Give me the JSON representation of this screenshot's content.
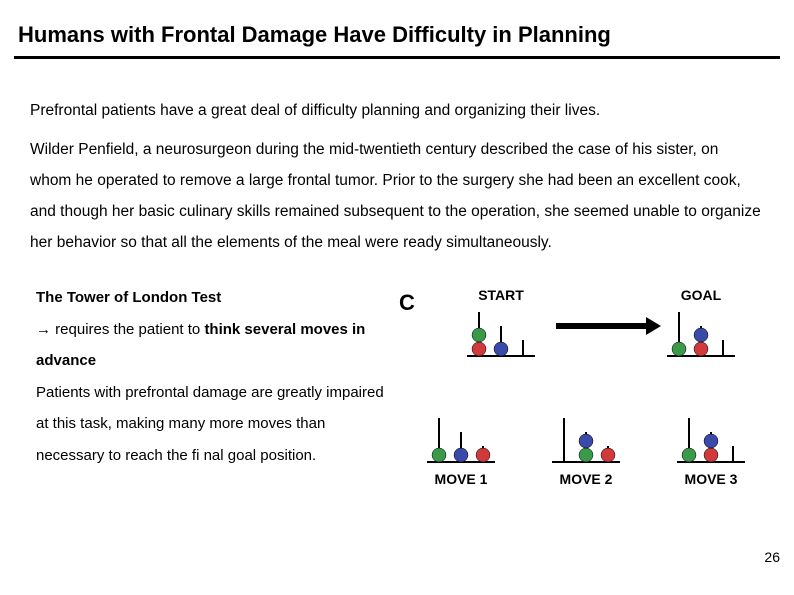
{
  "title": "Humans with Frontal Damage Have Difficulty in Planning",
  "para1": "Prefrontal patients have a great deal of difficulty planning and organizing their lives.",
  "para2": "Wilder Penfield, a neurosurgeon during the mid-twentieth century described the case of his sister, on whom he operated to remove a large frontal tumor. Prior to the surgery she had been an excellent cook, and though her basic culinary skills remained subsequent to the operation, she seemed unable to organize her behavior so that all the elements of the meal were ready simultaneously.",
  "tower": {
    "heading": "The Tower of London Test",
    "line1_prefix": "→ requires the patient to ",
    "line1_bold": "think several moves in advance",
    "line2": "Patients with prefrontal damage are greatly impaired at this task, making many more moves than necessary to reach the fi nal goal position."
  },
  "diagram": {
    "panel_label": "C",
    "labels": {
      "start": "START",
      "goal": "GOAL",
      "move1": "MOVE 1",
      "move2": "MOVE 2",
      "move3": "MOVE 3"
    },
    "colors": {
      "red": "#d03a3a",
      "green": "#3a9a4a",
      "blue": "#3a4aa8",
      "peg": "#000000",
      "arrow": "#000000",
      "bg": "#ffffff"
    },
    "ball_radius": 7,
    "peg_width": 2,
    "peg_heights": [
      44,
      30,
      16
    ],
    "peg_spacing": 22,
    "pegset_width": 70,
    "start": {
      "pegs": [
        [
          "red",
          "green"
        ],
        [
          "blue"
        ],
        []
      ]
    },
    "goal": {
      "pegs": [
        [
          "green"
        ],
        [
          "red",
          "blue"
        ],
        []
      ]
    },
    "move1": {
      "pegs": [
        [
          "green"
        ],
        [
          "blue"
        ],
        [
          "red"
        ]
      ]
    },
    "move2": {
      "pegs": [
        [],
        [
          "green",
          "blue"
        ],
        [
          "red"
        ]
      ]
    },
    "move3": {
      "pegs": [
        [
          "green"
        ],
        [
          "red",
          "blue"
        ],
        []
      ]
    }
  },
  "page_number": "26"
}
